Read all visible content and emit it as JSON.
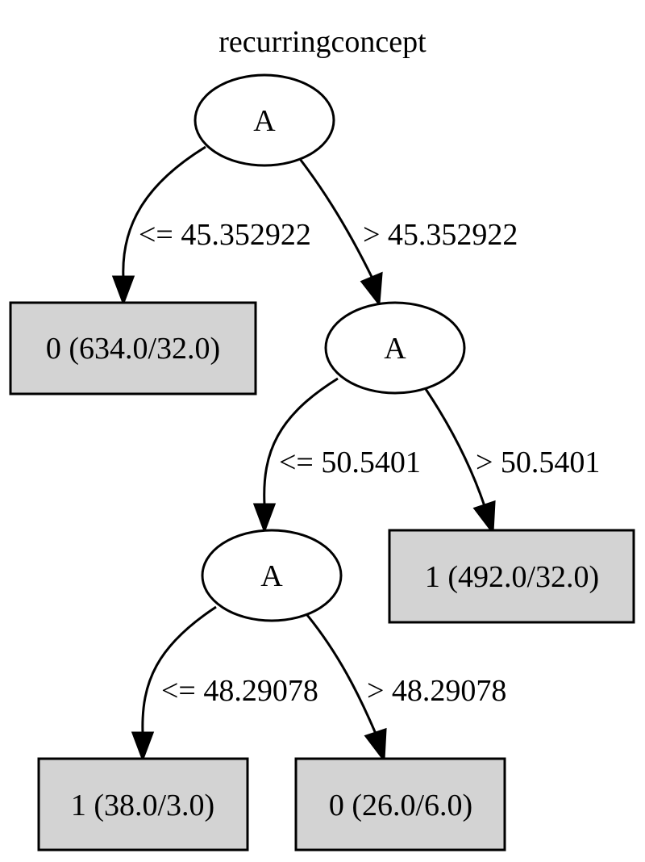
{
  "title": "recurringconcept",
  "colors": {
    "leaf_fill": "#d3d3d3",
    "internal_fill": "#ffffff",
    "stroke": "#000000"
  },
  "nodes": [
    {
      "id": "n0",
      "shape": "ellipse",
      "label": "A"
    },
    {
      "id": "n1",
      "shape": "box",
      "label": "0 (634.0/32.0)"
    },
    {
      "id": "n2",
      "shape": "ellipse",
      "label": "A"
    },
    {
      "id": "n3",
      "shape": "ellipse",
      "label": "A"
    },
    {
      "id": "n4",
      "shape": "box",
      "label": "1 (492.0/32.0)"
    },
    {
      "id": "n5",
      "shape": "box",
      "label": "1 (38.0/3.0)"
    },
    {
      "id": "n6",
      "shape": "box",
      "label": "0 (26.0/6.0)"
    }
  ],
  "edges": [
    {
      "from": "n0",
      "to": "n1",
      "label": "<= 45.352922"
    },
    {
      "from": "n0",
      "to": "n2",
      "label": "> 45.352922"
    },
    {
      "from": "n2",
      "to": "n3",
      "label": "<= 50.5401"
    },
    {
      "from": "n2",
      "to": "n4",
      "label": "> 50.5401"
    },
    {
      "from": "n3",
      "to": "n5",
      "label": "<= 48.29078"
    },
    {
      "from": "n3",
      "to": "n6",
      "label": "> 48.29078"
    }
  ]
}
